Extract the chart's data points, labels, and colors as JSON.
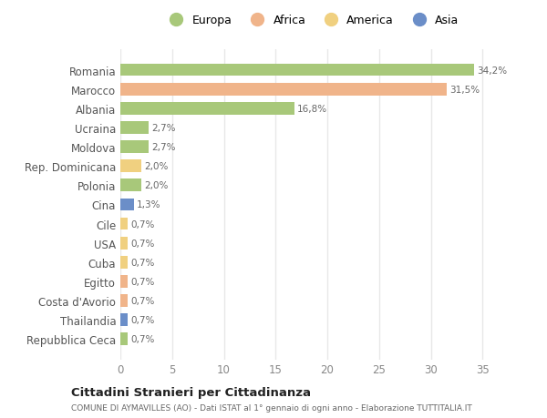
{
  "categories": [
    "Romania",
    "Marocco",
    "Albania",
    "Ucraina",
    "Moldova",
    "Rep. Dominicana",
    "Polonia",
    "Cina",
    "Cile",
    "USA",
    "Cuba",
    "Egitto",
    "Costa d'Avorio",
    "Thailandia",
    "Repubblica Ceca"
  ],
  "values": [
    34.2,
    31.5,
    16.8,
    2.7,
    2.7,
    2.0,
    2.0,
    1.3,
    0.7,
    0.7,
    0.7,
    0.7,
    0.7,
    0.7,
    0.7
  ],
  "labels": [
    "34,2%",
    "31,5%",
    "16,8%",
    "2,7%",
    "2,7%",
    "2,0%",
    "2,0%",
    "1,3%",
    "0,7%",
    "0,7%",
    "0,7%",
    "0,7%",
    "0,7%",
    "0,7%",
    "0,7%"
  ],
  "continents": [
    "Europa",
    "Africa",
    "Europa",
    "Europa",
    "Europa",
    "America",
    "Europa",
    "Asia",
    "America",
    "America",
    "America",
    "Africa",
    "Africa",
    "Asia",
    "Europa"
  ],
  "colors": {
    "Europa": "#a8c87a",
    "Africa": "#f0b48a",
    "America": "#f0d080",
    "Asia": "#6b8ec8"
  },
  "legend_labels": [
    "Europa",
    "Africa",
    "America",
    "Asia"
  ],
  "legend_colors": [
    "#a8c87a",
    "#f0b48a",
    "#f0d080",
    "#6b8ec8"
  ],
  "xlim": [
    0,
    37
  ],
  "xticks": [
    0,
    5,
    10,
    15,
    20,
    25,
    30,
    35
  ],
  "title": "Cittadini Stranieri per Cittadinanza",
  "subtitle": "COMUNE DI AYMAVILLES (AO) - Dati ISTAT al 1° gennaio di ogni anno - Elaborazione TUTTITALIA.IT",
  "background_color": "#ffffff",
  "plot_bg_color": "#ffffff",
  "grid_color": "#e8e8e8"
}
